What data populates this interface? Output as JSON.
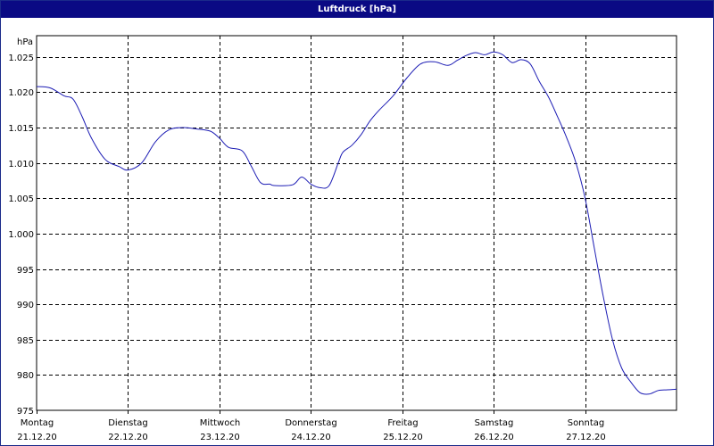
{
  "window": {
    "title": "Luftdruck [hPa]"
  },
  "colors": {
    "titlebar": "#0a0a84",
    "line": "#1c1cb4",
    "grid": "#000000",
    "background": "#ffffff"
  },
  "chart_data": {
    "type": "line",
    "title": "Luftdruck [hPa]",
    "ylabel": "hPa",
    "xlabel": "",
    "grid": true,
    "legend": "none",
    "xlim": [
      0,
      7
    ],
    "ylim": [
      975,
      1028
    ],
    "y_ticks": [
      975,
      980,
      985,
      990,
      995,
      1000,
      1005,
      1010,
      1015,
      1020,
      1025
    ],
    "y_tick_labels": [
      "975",
      "980",
      "985",
      "990",
      "995",
      "1.000",
      "1.005",
      "1.010",
      "1.015",
      "1.020",
      "1.025"
    ],
    "x_ticks": [
      {
        "x": 0,
        "day": "Montag",
        "date": "21.12.20"
      },
      {
        "x": 1,
        "day": "Dienstag",
        "date": "22.12.20"
      },
      {
        "x": 2,
        "day": "Mittwoch",
        "date": "23.12.20"
      },
      {
        "x": 3,
        "day": "Donnerstag",
        "date": "24.12.20"
      },
      {
        "x": 4,
        "day": "Freitag",
        "date": "25.12.20"
      },
      {
        "x": 5,
        "day": "Samstag",
        "date": "26.12.20"
      },
      {
        "x": 6,
        "day": "Sonntag",
        "date": "27.12.20"
      }
    ],
    "series": [
      {
        "x": [
          0.0,
          0.15,
          0.3,
          0.4,
          0.5,
          0.6,
          0.75,
          0.9,
          1.0,
          1.15,
          1.3,
          1.45,
          1.6,
          1.75,
          1.9,
          2.0,
          2.1,
          2.25,
          2.35,
          2.45,
          2.55,
          2.6,
          2.8,
          2.9,
          3.0,
          3.1,
          3.2,
          3.3,
          3.35,
          3.45,
          3.55,
          3.65,
          3.75,
          3.9,
          4.05,
          4.2,
          4.35,
          4.5,
          4.6,
          4.7,
          4.8,
          4.9,
          5.0,
          5.1,
          5.2,
          5.3,
          5.4,
          5.5,
          5.6,
          5.7,
          5.8,
          5.9,
          6.0,
          6.1,
          6.2,
          6.3,
          6.4,
          6.5,
          6.6,
          6.7,
          6.8,
          6.9,
          7.0
        ],
        "y": [
          1020.8,
          1020.6,
          1019.5,
          1019.0,
          1016.5,
          1013.5,
          1010.5,
          1009.5,
          1009.0,
          1010.0,
          1013.0,
          1014.7,
          1015.0,
          1014.8,
          1014.5,
          1013.5,
          1012.2,
          1011.7,
          1009.5,
          1007.2,
          1007.0,
          1006.8,
          1006.9,
          1008.0,
          1007.0,
          1006.5,
          1006.8,
          1010.0,
          1011.5,
          1012.5,
          1014.0,
          1016.0,
          1017.5,
          1019.5,
          1022.0,
          1024.0,
          1024.3,
          1023.8,
          1024.5,
          1025.2,
          1025.6,
          1025.3,
          1025.7,
          1025.3,
          1024.2,
          1024.6,
          1024.0,
          1021.5,
          1019.3,
          1016.5,
          1013.5,
          1010.0,
          1005.0,
          998.0,
          991.0,
          985.0,
          981.0,
          979.0,
          977.5,
          977.3,
          977.8,
          977.9,
          978.0
        ]
      }
    ]
  }
}
